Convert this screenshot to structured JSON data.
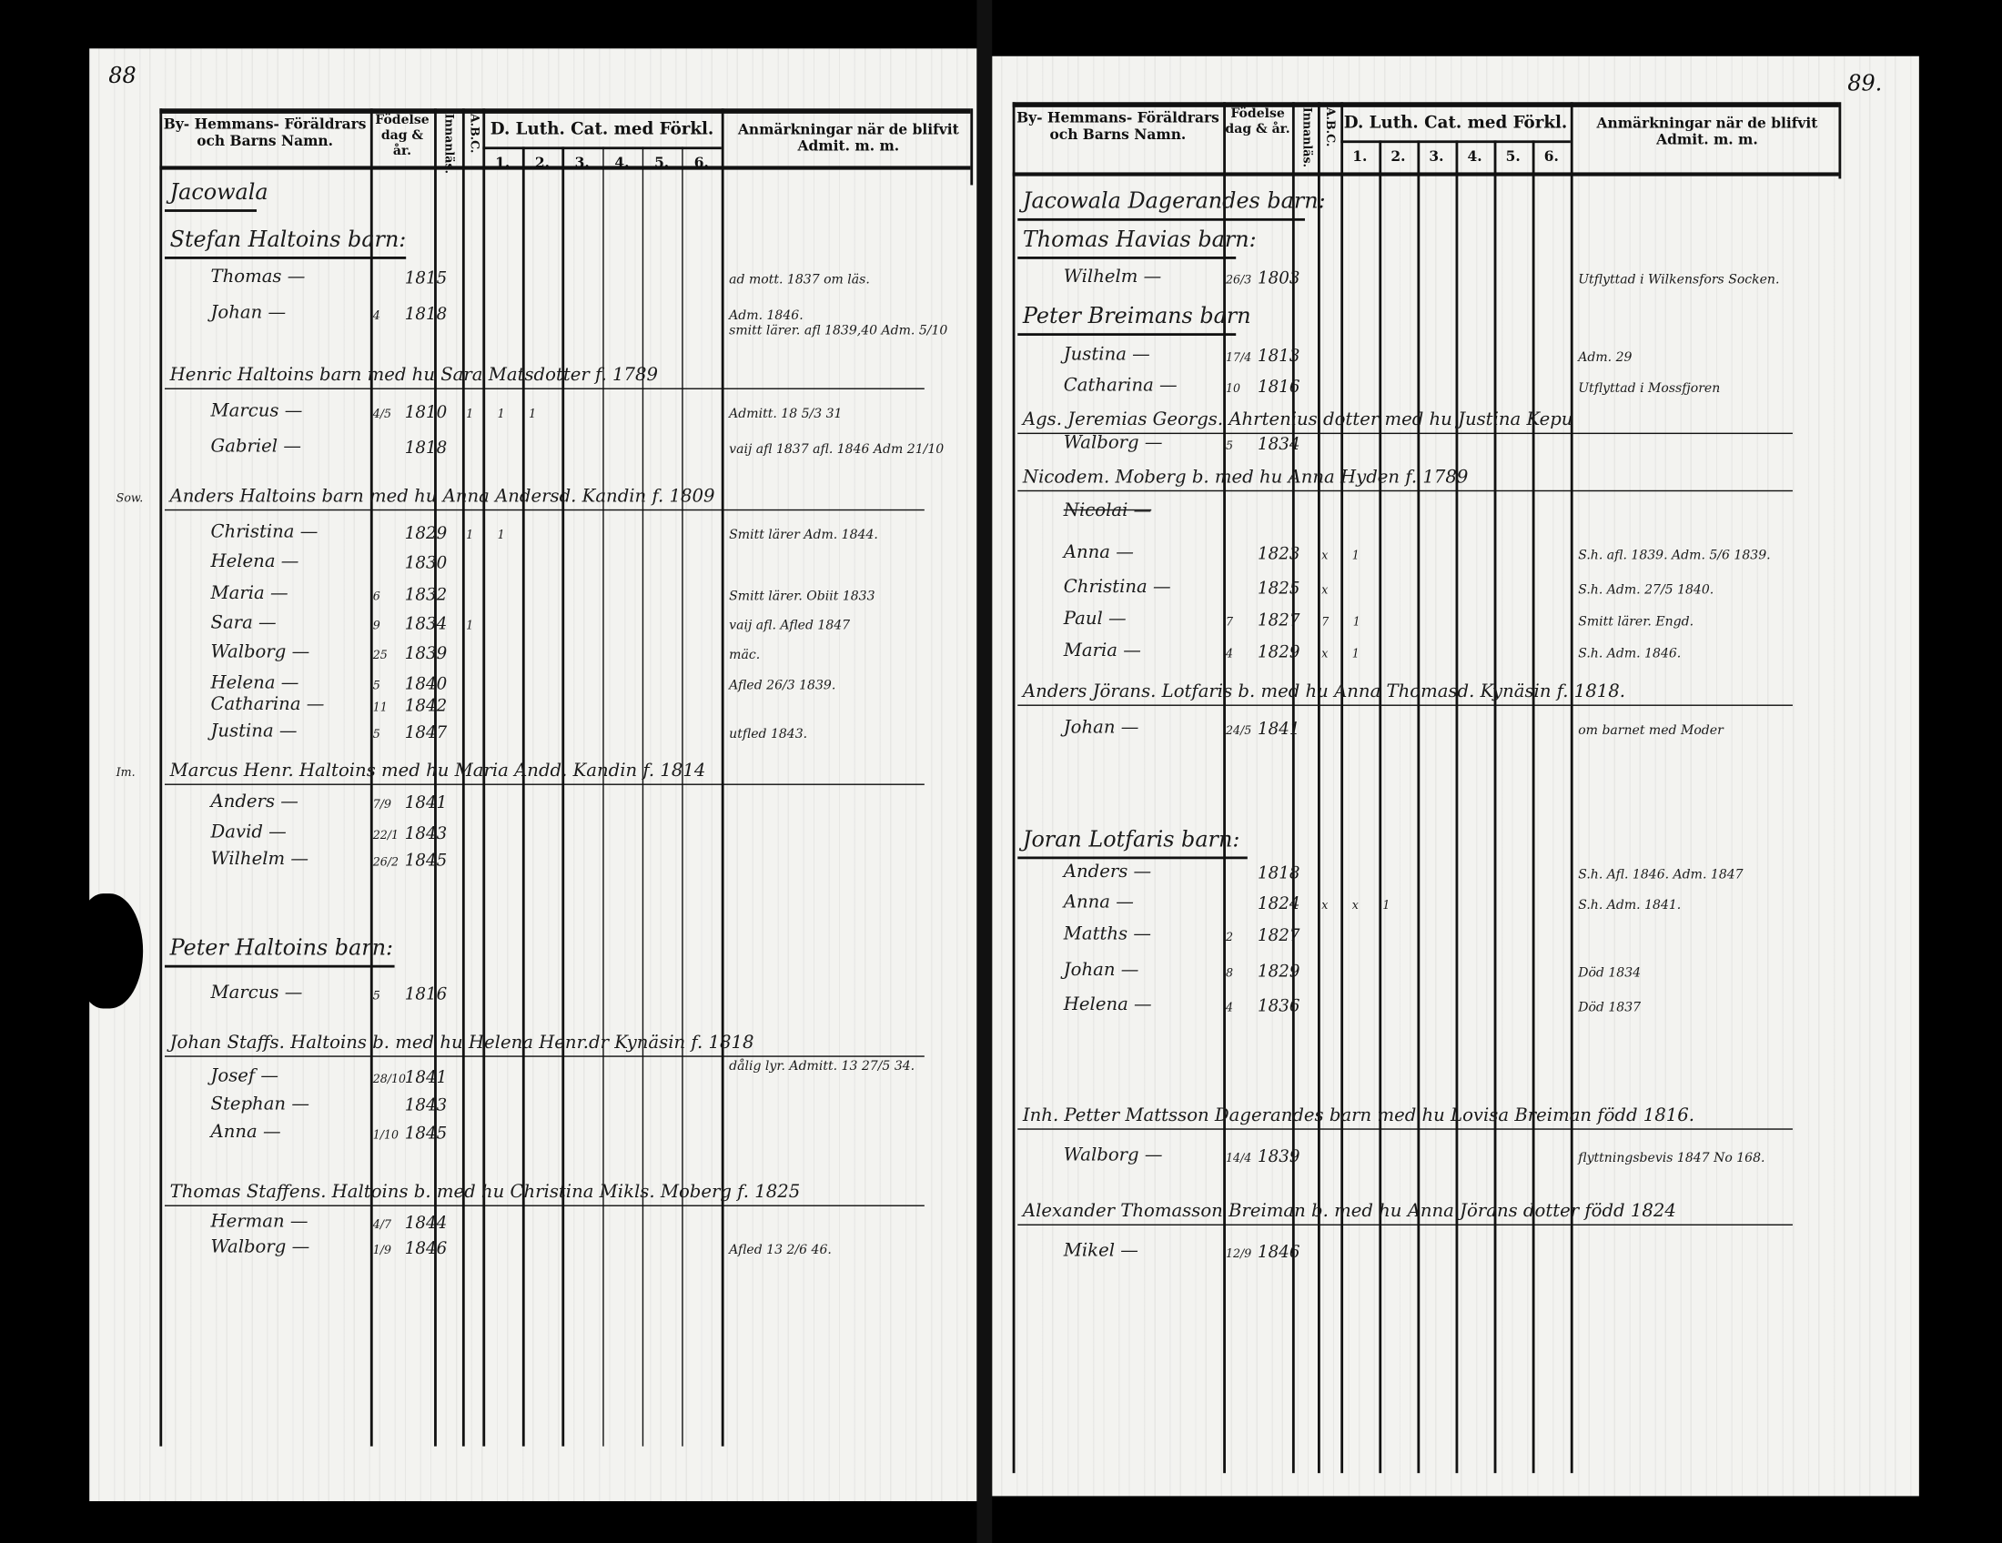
{
  "header": {
    "name_col": "By- Hemmans- Föräldrars och Barns Namn.",
    "birth_col": "Födelse dag & år.",
    "innanlas_col": "Innanläs.",
    "abc_col": "A.B.C.",
    "catechism_col": "D. Luth. Cat. med Förkl.",
    "cat_numbers": [
      "1.",
      "2.",
      "3.",
      "4.",
      "5.",
      "6."
    ],
    "remarks_col": "Anmärkningar när de blifvit Admit. m. m."
  },
  "left": {
    "page_number": "88",
    "rows": [
      {
        "kind": "head",
        "name": "Jacowala"
      },
      {
        "kind": "head",
        "name": "Stefan Haltoins barn:"
      },
      {
        "kind": "child",
        "name": "Thomas",
        "day": "",
        "year": "1815",
        "remark": "ad mott. 1837 om läs."
      },
      {
        "kind": "child",
        "name": "Johan",
        "day": "4",
        "year": "1818",
        "remark": "Adm. 1846."
      },
      {
        "kind": "rem",
        "remark": "smitt lärer. afl 1839,40 Adm. 5/10"
      },
      {
        "kind": "head",
        "name": "Henric Haltoins barn med hu Sara Matsdotter f. 1789"
      },
      {
        "kind": "child",
        "name": "Marcus",
        "day": "4/5",
        "year": "1810",
        "marks": "1 1 1",
        "remark": "Admitt. 18 5/3 31"
      },
      {
        "kind": "child",
        "name": "Gabriel",
        "day": "",
        "year": "1818",
        "remark": "vaij afl 1837 afl. 1846 Adm 21/10"
      },
      {
        "kind": "head",
        "prefix": "Sow.",
        "name": "Anders Haltoins barn med hu Anna Andersd. Kandin f. 1809"
      },
      {
        "kind": "child",
        "name": "Christina",
        "day": "",
        "year": "1829",
        "marks": "1 1",
        "remark": "Smitt lärer Adm. 1844."
      },
      {
        "kind": "child",
        "name": "Helena",
        "day": "",
        "year": "1830",
        "remark": ""
      },
      {
        "kind": "child",
        "name": "Maria",
        "day": "6",
        "year": "1832",
        "remark": "Smitt lärer. Obiit 1833"
      },
      {
        "kind": "child",
        "name": "Sara",
        "day": "9",
        "year": "1834",
        "marks": "1",
        "remark": "vaij afl. Afled 1847"
      },
      {
        "kind": "child",
        "name": "Walborg",
        "day": "25",
        "year": "1839",
        "remark": "mäc."
      },
      {
        "kind": "child",
        "name": "Helena",
        "day": "5",
        "year": "1840",
        "remark": "Afled 26/3 1839."
      },
      {
        "kind": "child",
        "name": "Catharina",
        "day": "11",
        "year": "1842",
        "remark": ""
      },
      {
        "kind": "child",
        "name": "Justina",
        "day": "5",
        "year": "1847",
        "remark": "utfled 1843."
      },
      {
        "kind": "head",
        "prefix": "Im.",
        "name": "Marcus Henr. Haltoins med hu Maria Andd. Kandin f. 1814"
      },
      {
        "kind": "child",
        "name": "Anders",
        "day": "7/9",
        "year": "1841",
        "remark": ""
      },
      {
        "kind": "child",
        "name": "David",
        "day": "22/1",
        "year": "1843",
        "remark": ""
      },
      {
        "kind": "child",
        "name": "Wilhelm",
        "day": "26/2",
        "year": "1845",
        "remark": ""
      },
      {
        "kind": "head",
        "name": "Peter Haltoins barn:"
      },
      {
        "kind": "child",
        "name": "Marcus",
        "day": "5",
        "year": "1816",
        "remark": ""
      },
      {
        "kind": "head",
        "name": "Johan Staffs. Haltoins b. med hu Helena Henr.dr Kynäsin f. 1818",
        "remark": "dålig lyr. Admitt. 13 27/5 34."
      },
      {
        "kind": "child",
        "name": "Josef",
        "day": "28/10",
        "year": "1841",
        "remark": ""
      },
      {
        "kind": "child",
        "name": "Stephan",
        "day": "",
        "year": "1843",
        "remark": ""
      },
      {
        "kind": "child",
        "name": "Anna",
        "day": "1/10",
        "year": "1845",
        "remark": ""
      },
      {
        "kind": "head",
        "name": "Thomas Staffens. Haltoins b. med hu Christina Mikls. Moberg f. 1825"
      },
      {
        "kind": "child",
        "name": "Herman",
        "day": "4/7",
        "year": "1844",
        "remark": ""
      },
      {
        "kind": "child",
        "name": "Walborg",
        "day": "1/9",
        "year": "1846",
        "remark": "Afled 13 2/6 46."
      }
    ]
  },
  "right": {
    "page_number": "89.",
    "rows": [
      {
        "kind": "head",
        "name": "Jacowala Dagerandes barn:"
      },
      {
        "kind": "head",
        "name": "Thomas Havias barn:"
      },
      {
        "kind": "child",
        "name": "Wilhelm",
        "day": "26/3",
        "year": "1803",
        "remark": "Utflyttad i Wilkensfors Socken."
      },
      {
        "kind": "head",
        "name": "Peter Breimans barn"
      },
      {
        "kind": "child",
        "name": "Justina",
        "day": "17/4",
        "year": "1813",
        "remark": "Adm. 29"
      },
      {
        "kind": "child",
        "name": "Catharina",
        "day": "10",
        "year": "1816",
        "remark": "Utflyttad i Mossfjoren"
      },
      {
        "kind": "head",
        "name": "Ags. Jeremias Georgs. Ahrtenius dotter med hu Justina Kepu"
      },
      {
        "kind": "child",
        "name": "Walborg",
        "day": "5",
        "year": "1834",
        "remark": ""
      },
      {
        "kind": "head",
        "name": "Nicodem. Moberg b. med hu Anna Hyden f. 1789"
      },
      {
        "kind": "child",
        "name": "Nicolai",
        "day": "",
        "year": "",
        "remark": "",
        "struck": true
      },
      {
        "kind": "child",
        "name": "Anna",
        "day": "",
        "year": "1823",
        "marks": "x 1",
        "remark": "S.h. afl. 1839. Adm. 5/6 1839."
      },
      {
        "kind": "child",
        "name": "Christina",
        "day": "",
        "year": "1825",
        "marks": "x",
        "remark": "S.h. Adm. 27/5 1840."
      },
      {
        "kind": "child",
        "name": "Paul",
        "day": "7",
        "year": "1827",
        "marks": "7 1",
        "remark": "Smitt lärer. Engd."
      },
      {
        "kind": "child",
        "name": "Maria",
        "day": "4",
        "year": "1829",
        "marks": "x 1",
        "remark": "S.h. Adm. 1846."
      },
      {
        "kind": "head",
        "name": "Anders Jörans. Lotfaris b. med hu Anna Thomasd. Kynäsin f. 1818."
      },
      {
        "kind": "child",
        "name": "Johan",
        "day": "24/5",
        "year": "1841",
        "remark": "om barnet med Moder"
      },
      {
        "kind": "head",
        "name": "Joran Lotfaris barn:"
      },
      {
        "kind": "child",
        "name": "Anders",
        "day": "",
        "year": "1818",
        "remark": "S.h. Afl. 1846. Adm. 1847"
      },
      {
        "kind": "child",
        "name": "Anna",
        "day": "",
        "year": "1824",
        "marks": "x x 1",
        "remark": "S.h. Adm. 1841."
      },
      {
        "kind": "child",
        "name": "Matths",
        "day": "2",
        "year": "1827",
        "remark": ""
      },
      {
        "kind": "child",
        "name": "Johan",
        "day": "8",
        "year": "1829",
        "remark": "Död 1834"
      },
      {
        "kind": "child",
        "name": "Helena",
        "day": "4",
        "year": "1836",
        "remark": "Död 1837"
      },
      {
        "kind": "head",
        "name": "Inh. Petter Mattsson Dagerandes barn med hu Lovisa Breiman född 1816."
      },
      {
        "kind": "child",
        "name": "Walborg",
        "day": "14/4",
        "year": "1839",
        "remark": "flyttningsbevis 1847 No 168."
      },
      {
        "kind": "head",
        "name": "Alexander Thomasson Breiman b. med hu Anna Jörans dotter född 1824"
      },
      {
        "kind": "child",
        "name": "Mikel",
        "day": "12/9",
        "year": "1846",
        "remark": ""
      }
    ]
  }
}
